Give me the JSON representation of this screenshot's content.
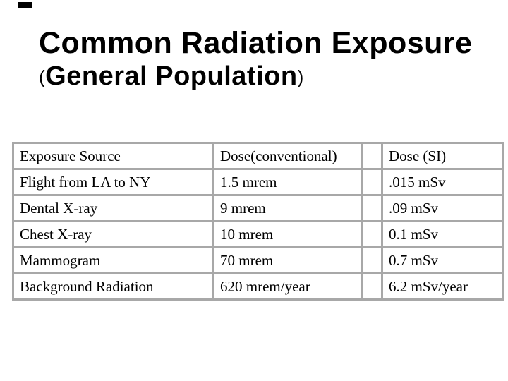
{
  "slide": {
    "title_line1": "Common Radiation Exposure",
    "title_line2": {
      "open_paren": "(",
      "text": "General Population",
      "close_paren": ")"
    }
  },
  "table": {
    "columns": [
      "Exposure Source",
      "Dose(conventional)",
      "Dose (SI)"
    ],
    "rows": [
      [
        "Flight from LA to NY",
        "1.5 mrem",
        ".015 mSv"
      ],
      [
        "Dental X-ray",
        "9 mrem",
        ".09 mSv"
      ],
      [
        "Chest X-ray",
        "10 mrem",
        "0.1 mSv"
      ],
      [
        "Mammogram",
        "70 mrem",
        "0.7 mSv"
      ],
      [
        "Background Radiation",
        "620 mrem/year",
        "6.2 mSv/year"
      ]
    ]
  },
  "colors": {
    "background": "#ffffff",
    "text": "#000000",
    "table_border": "#a8a8a8"
  }
}
